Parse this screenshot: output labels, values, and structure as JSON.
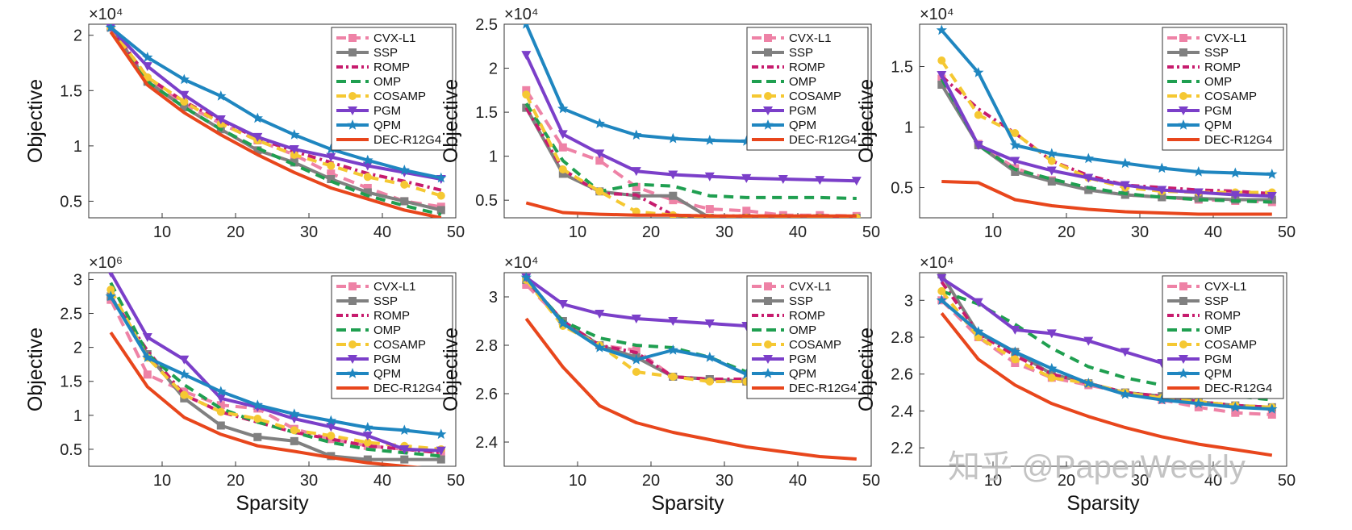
{
  "watermark": "知乎 @PaperWeekly",
  "colors": {
    "CVX-L1": "#ee82a6",
    "SSP": "#808080",
    "ROMP": "#c71c6e",
    "OMP": "#1f9f50",
    "COSAMP": "#f5c832",
    "PGM": "#7b3fc9",
    "QPM": "#1f86c0",
    "DEC-R12G4": "#e8461c"
  },
  "chart_data": [
    {
      "type": "line",
      "ylabel": "Objective",
      "xlabel": "",
      "y_exponent_label": "×10⁴",
      "xlim": [
        0,
        50
      ],
      "ylim": [
        0.35,
        2.1
      ],
      "xticks": [
        10,
        20,
        30,
        40,
        50
      ],
      "xtick_labels": [
        "10",
        "20",
        "30",
        "40",
        "50"
      ],
      "yticks": [
        0.5,
        1,
        1.5,
        2
      ],
      "ytick_labels": [
        "0.5",
        "1",
        "1.5",
        "2"
      ],
      "legend_position": "top-right",
      "x": [
        3,
        8,
        13,
        18,
        23,
        28,
        33,
        38,
        43,
        48
      ],
      "series": [
        {
          "name": "CVX-L1",
          "values": [
            2.07,
            1.6,
            1.38,
            1.2,
            1.05,
            0.92,
            0.75,
            0.62,
            0.5,
            0.45
          ]
        },
        {
          "name": "SSP",
          "values": [
            2.07,
            1.58,
            1.35,
            1.15,
            0.96,
            0.85,
            0.7,
            0.58,
            0.5,
            0.42
          ]
        },
        {
          "name": "ROMP",
          "values": [
            2.07,
            1.62,
            1.4,
            1.23,
            1.07,
            0.95,
            0.85,
            0.75,
            0.68,
            0.6
          ]
        },
        {
          "name": "OMP",
          "values": [
            2.07,
            1.58,
            1.35,
            1.15,
            0.98,
            0.83,
            0.68,
            0.55,
            0.46,
            0.38
          ]
        },
        {
          "name": "COSAMP",
          "values": [
            2.07,
            1.62,
            1.4,
            1.2,
            1.05,
            0.92,
            0.82,
            0.72,
            0.65,
            0.55
          ]
        },
        {
          "name": "PGM",
          "values": [
            2.07,
            1.72,
            1.46,
            1.24,
            1.08,
            0.97,
            0.9,
            0.82,
            0.76,
            0.7
          ]
        },
        {
          "name": "QPM",
          "values": [
            2.07,
            1.8,
            1.6,
            1.45,
            1.25,
            1.1,
            0.97,
            0.87,
            0.78,
            0.71
          ]
        },
        {
          "name": "DEC-R12G4",
          "values": [
            2.03,
            1.55,
            1.3,
            1.1,
            0.92,
            0.76,
            0.62,
            0.52,
            0.42,
            0.35
          ]
        }
      ]
    },
    {
      "type": "line",
      "ylabel": "Objective",
      "xlabel": "",
      "y_exponent_label": "×10⁴",
      "xlim": [
        0,
        50
      ],
      "ylim": [
        0.3,
        2.5
      ],
      "xticks": [
        10,
        20,
        30,
        40,
        50
      ],
      "xtick_labels": [
        "10",
        "20",
        "30",
        "40",
        "50"
      ],
      "yticks": [
        0.5,
        1,
        1.5,
        2,
        2.5
      ],
      "ytick_labels": [
        "0.5",
        "1",
        "1.5",
        "2",
        "2.5"
      ],
      "legend_position": "top-right",
      "x": [
        3,
        8,
        13,
        18,
        23,
        28,
        33,
        38,
        43,
        48
      ],
      "series": [
        {
          "name": "CVX-L1",
          "values": [
            1.75,
            1.1,
            0.95,
            0.65,
            0.5,
            0.4,
            0.38,
            0.33,
            0.33,
            0.32
          ]
        },
        {
          "name": "SSP",
          "values": [
            1.55,
            0.8,
            0.6,
            0.55,
            0.55,
            0.3,
            0.3,
            0.3,
            0.3,
            0.3
          ]
        },
        {
          "name": "ROMP",
          "values": [
            1.55,
            0.85,
            0.58,
            0.56,
            0.33,
            0.32,
            0.32,
            0.32,
            0.32,
            0.31
          ]
        },
        {
          "name": "OMP",
          "values": [
            1.6,
            0.95,
            0.6,
            0.68,
            0.66,
            0.55,
            0.53,
            0.53,
            0.53,
            0.52
          ]
        },
        {
          "name": "COSAMP",
          "values": [
            1.7,
            0.85,
            0.6,
            0.37,
            0.33,
            0.3,
            0.3,
            0.3,
            0.3,
            0.3
          ]
        },
        {
          "name": "PGM",
          "values": [
            2.15,
            1.25,
            1.03,
            0.83,
            0.79,
            0.77,
            0.75,
            0.74,
            0.73,
            0.72
          ]
        },
        {
          "name": "QPM",
          "values": [
            2.5,
            1.54,
            1.37,
            1.24,
            1.2,
            1.18,
            1.17,
            1.16,
            1.15,
            1.15
          ]
        },
        {
          "name": "DEC-R12G4",
          "values": [
            0.47,
            0.36,
            0.34,
            0.33,
            0.33,
            0.32,
            0.32,
            0.32,
            0.32,
            0.32
          ]
        }
      ]
    },
    {
      "type": "line",
      "ylabel": "Objective",
      "xlabel": "",
      "y_exponent_label": "×10⁴",
      "xlim": [
        0,
        50
      ],
      "ylim": [
        0.25,
        1.85
      ],
      "xticks": [
        10,
        20,
        30,
        40,
        50
      ],
      "xtick_labels": [
        "10",
        "20",
        "30",
        "40",
        "50"
      ],
      "yticks": [
        0.5,
        1,
        1.5
      ],
      "ytick_labels": [
        "0.5",
        "1",
        "1.5"
      ],
      "legend_position": "top-right",
      "x": [
        3,
        8,
        13,
        18,
        23,
        28,
        33,
        38,
        43,
        48
      ],
      "series": [
        {
          "name": "CVX-L1",
          "values": [
            1.4,
            0.86,
            0.66,
            0.56,
            0.48,
            0.44,
            0.42,
            0.4,
            0.39,
            0.38
          ]
        },
        {
          "name": "SSP",
          "values": [
            1.35,
            0.85,
            0.63,
            0.55,
            0.48,
            0.44,
            0.42,
            0.41,
            0.4,
            0.4
          ]
        },
        {
          "name": "ROMP",
          "values": [
            1.42,
            1.15,
            0.95,
            0.72,
            0.6,
            0.52,
            0.5,
            0.48,
            0.47,
            0.45
          ]
        },
        {
          "name": "OMP",
          "values": [
            1.4,
            0.85,
            0.65,
            0.57,
            0.5,
            0.45,
            0.42,
            0.4,
            0.39,
            0.38
          ]
        },
        {
          "name": "COSAMP",
          "values": [
            1.55,
            1.1,
            0.95,
            0.72,
            0.58,
            0.5,
            0.47,
            0.46,
            0.46,
            0.46
          ]
        },
        {
          "name": "PGM",
          "values": [
            1.43,
            0.85,
            0.72,
            0.64,
            0.58,
            0.52,
            0.48,
            0.46,
            0.44,
            0.43
          ]
        },
        {
          "name": "QPM",
          "values": [
            1.8,
            1.45,
            0.85,
            0.78,
            0.74,
            0.7,
            0.66,
            0.63,
            0.62,
            0.61
          ]
        },
        {
          "name": "DEC-R12G4",
          "values": [
            0.55,
            0.54,
            0.4,
            0.35,
            0.32,
            0.3,
            0.29,
            0.28,
            0.28,
            0.28
          ]
        }
      ]
    },
    {
      "type": "line",
      "ylabel": "Objective",
      "xlabel": "Sparsity",
      "y_exponent_label": "×10⁶",
      "xlim": [
        0,
        50
      ],
      "ylim": [
        0.25,
        3.1
      ],
      "xticks": [
        10,
        20,
        30,
        40,
        50
      ],
      "xtick_labels": [
        "10",
        "20",
        "30",
        "40",
        "50"
      ],
      "yticks": [
        0.5,
        1,
        1.5,
        2,
        2.5,
        3
      ],
      "ytick_labels": [
        "0.5",
        "1",
        "1.5",
        "2",
        "2.5",
        "3"
      ],
      "legend_position": "top-right",
      "x": [
        3,
        8,
        13,
        18,
        23,
        28,
        33,
        38,
        43,
        48
      ],
      "series": [
        {
          "name": "CVX-L1",
          "values": [
            2.7,
            1.6,
            1.35,
            1.15,
            1.1,
            0.8,
            0.65,
            0.55,
            0.5,
            0.45
          ]
        },
        {
          "name": "SSP",
          "values": [
            2.75,
            1.9,
            1.25,
            0.85,
            0.68,
            0.62,
            0.4,
            0.35,
            0.35,
            0.35
          ]
        },
        {
          "name": "ROMP",
          "values": [
            2.75,
            1.95,
            1.3,
            1.05,
            0.9,
            0.75,
            0.65,
            0.55,
            0.5,
            0.45
          ]
        },
        {
          "name": "OMP",
          "values": [
            2.95,
            1.9,
            1.45,
            1.1,
            0.9,
            0.75,
            0.6,
            0.5,
            0.45,
            0.4
          ]
        },
        {
          "name": "COSAMP",
          "values": [
            2.85,
            1.85,
            1.3,
            1.05,
            0.95,
            0.78,
            0.7,
            0.6,
            0.55,
            0.5
          ]
        },
        {
          "name": "PGM",
          "values": [
            3.1,
            2.15,
            1.82,
            1.25,
            1.12,
            0.95,
            0.83,
            0.7,
            0.5,
            0.48
          ]
        },
        {
          "name": "QPM",
          "values": [
            2.75,
            1.85,
            1.6,
            1.35,
            1.15,
            1.02,
            0.92,
            0.82,
            0.78,
            0.72
          ]
        },
        {
          "name": "DEC-R12G4",
          "values": [
            2.22,
            1.42,
            0.97,
            0.72,
            0.55,
            0.47,
            0.38,
            0.3,
            0.25,
            0.2
          ]
        }
      ]
    },
    {
      "type": "line",
      "ylabel": "Objective",
      "xlabel": "Sparsity",
      "y_exponent_label": "×10⁴",
      "xlim": [
        0,
        50
      ],
      "ylim": [
        2.3,
        3.1
      ],
      "xticks": [
        10,
        20,
        30,
        40,
        50
      ],
      "xtick_labels": [
        "10",
        "20",
        "30",
        "40",
        "50"
      ],
      "yticks": [
        2.4,
        2.6,
        2.8,
        3
      ],
      "ytick_labels": [
        "2.4",
        "2.6",
        "2.8",
        "3"
      ],
      "legend_position": "top-right",
      "x": [
        3,
        8,
        13,
        18,
        23,
        28,
        33,
        38,
        43,
        48
      ],
      "series": [
        {
          "name": "CVX-L1",
          "values": [
            3.05,
            2.9,
            2.8,
            2.78,
            2.67,
            2.66,
            2.65,
            2.65,
            2.64,
            2.64
          ]
        },
        {
          "name": "SSP",
          "values": [
            3.07,
            2.9,
            2.8,
            2.75,
            2.67,
            2.66,
            2.65,
            2.65,
            2.64,
            2.64
          ]
        },
        {
          "name": "ROMP",
          "values": [
            3.07,
            2.9,
            2.8,
            2.77,
            2.67,
            2.66,
            2.66,
            2.65,
            2.65,
            2.65
          ]
        },
        {
          "name": "OMP",
          "values": [
            3.07,
            2.9,
            2.83,
            2.8,
            2.79,
            2.75,
            2.69,
            2.68,
            2.67,
            2.67
          ]
        },
        {
          "name": "COSAMP",
          "values": [
            3.07,
            2.88,
            2.8,
            2.69,
            2.67,
            2.65,
            2.65,
            2.64,
            2.64,
            2.64
          ]
        },
        {
          "name": "PGM",
          "values": [
            3.08,
            2.97,
            2.93,
            2.91,
            2.9,
            2.89,
            2.88,
            2.88,
            2.88,
            2.88
          ]
        },
        {
          "name": "QPM",
          "values": [
            3.08,
            2.89,
            2.79,
            2.74,
            2.78,
            2.75,
            2.68,
            2.67,
            2.67,
            2.67
          ]
        },
        {
          "name": "DEC-R12G4",
          "values": [
            2.91,
            2.71,
            2.55,
            2.48,
            2.44,
            2.41,
            2.38,
            2.36,
            2.34,
            2.33
          ]
        }
      ]
    },
    {
      "type": "line",
      "ylabel": "Objective",
      "xlabel": "Sparsity",
      "y_exponent_label": "×10⁴",
      "xlim": [
        0,
        50
      ],
      "ylim": [
        2.1,
        3.15
      ],
      "xticks": [
        10,
        20,
        30,
        40,
        50
      ],
      "xtick_labels": [
        "10",
        "20",
        "30",
        "40",
        "50"
      ],
      "yticks": [
        2.2,
        2.4,
        2.6,
        2.8,
        3
      ],
      "ytick_labels": [
        "2.2",
        "2.4",
        "2.6",
        "2.8",
        "3"
      ],
      "legend_position": "top-right",
      "x": [
        3,
        8,
        13,
        18,
        23,
        28,
        33,
        38,
        43,
        48
      ],
      "series": [
        {
          "name": "CVX-L1",
          "values": [
            3.0,
            2.8,
            2.66,
            2.58,
            2.54,
            2.5,
            2.46,
            2.42,
            2.39,
            2.38
          ]
        },
        {
          "name": "SSP",
          "values": [
            3.14,
            2.82,
            2.72,
            2.6,
            2.55,
            2.5,
            2.48,
            2.45,
            2.43,
            2.42
          ]
        },
        {
          "name": "ROMP",
          "values": [
            3.1,
            2.82,
            2.7,
            2.6,
            2.55,
            2.5,
            2.48,
            2.45,
            2.43,
            2.42
          ]
        },
        {
          "name": "OMP",
          "values": [
            3.05,
            2.98,
            2.87,
            2.74,
            2.64,
            2.58,
            2.54,
            2.5,
            2.48,
            2.46
          ]
        },
        {
          "name": "COSAMP",
          "values": [
            3.05,
            2.8,
            2.68,
            2.58,
            2.55,
            2.5,
            2.47,
            2.45,
            2.43,
            2.42
          ]
        },
        {
          "name": "PGM",
          "values": [
            3.12,
            2.99,
            2.84,
            2.82,
            2.78,
            2.72,
            2.66,
            2.62,
            2.58,
            2.55
          ]
        },
        {
          "name": "QPM",
          "values": [
            3.0,
            2.83,
            2.72,
            2.63,
            2.55,
            2.49,
            2.46,
            2.44,
            2.42,
            2.41
          ]
        },
        {
          "name": "DEC-R12G4",
          "values": [
            2.93,
            2.68,
            2.54,
            2.44,
            2.37,
            2.31,
            2.26,
            2.22,
            2.19,
            2.16
          ]
        }
      ]
    }
  ]
}
